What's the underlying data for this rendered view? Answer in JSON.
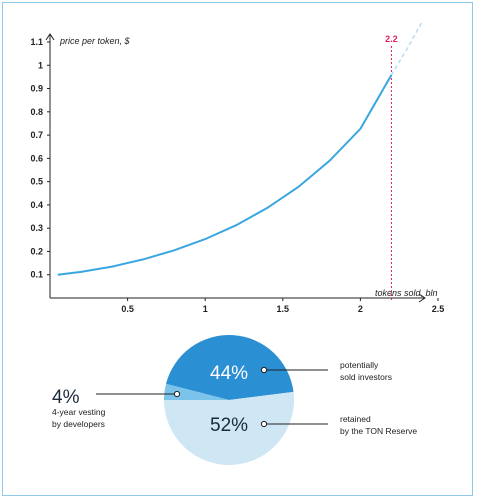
{
  "chart_data": [
    {
      "type": "line",
      "title": "",
      "ylabel": "price per token, $",
      "xlabel": "tokens sold, bln",
      "xlim": [
        0,
        2.5
      ],
      "ylim": [
        0,
        1.1
      ],
      "x_ticks": [
        "0.5",
        "1",
        "1.5",
        "2",
        "2.5"
      ],
      "y_ticks": [
        "0.1",
        "0.2",
        "0.3",
        "0.4",
        "0.5",
        "0.6",
        "0.7",
        "0.8",
        "0.9",
        "1",
        "1.1"
      ],
      "series": [
        {
          "color": "#3aa6e0",
          "x": [
            0.05,
            0.2,
            0.4,
            0.6,
            0.8,
            1.0,
            1.2,
            1.4,
            1.6,
            1.8,
            2.0,
            2.2
          ],
          "y": [
            0.1,
            0.112,
            0.135,
            0.166,
            0.205,
            0.253,
            0.313,
            0.387,
            0.477,
            0.589,
            0.727,
            0.958
          ]
        }
      ],
      "extension": {
        "style": "dashed",
        "color": "#b9dcf2",
        "x": [
          2.2,
          2.3,
          2.4
        ],
        "y": [
          0.958,
          1.07,
          1.19
        ]
      },
      "marker": {
        "x": 2.2,
        "label": "2.2",
        "color": "#e0245e"
      }
    },
    {
      "type": "pie",
      "slices": [
        {
          "value": 44,
          "label": "44%",
          "annotation": [
            "potentially",
            "sold investors"
          ],
          "color": "#2b8fd4"
        },
        {
          "value": 4,
          "label": "4%",
          "annotation": [
            "4-year vesting",
            "by developers"
          ],
          "color": "#7cc3ec"
        },
        {
          "value": 52,
          "label": "52%",
          "annotation": [
            "retained",
            "by the TON Reserve"
          ],
          "color": "#cfe6f5"
        }
      ]
    }
  ]
}
